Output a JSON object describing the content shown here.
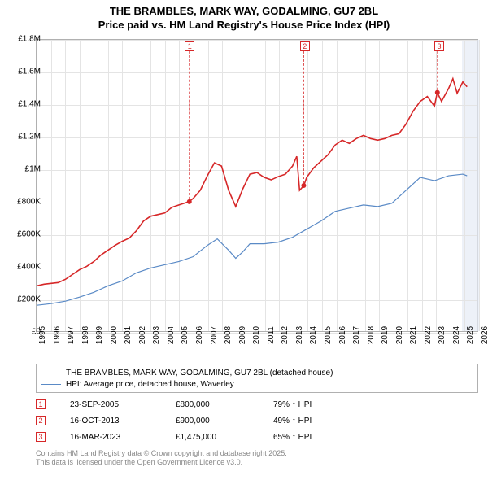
{
  "title_line1": "THE BRAMBLES, MARK WAY, GODALMING, GU7 2BL",
  "title_line2": "Price paid vs. HM Land Registry's House Price Index (HPI)",
  "chart": {
    "type": "line",
    "x_min": 1995,
    "x_max": 2026,
    "y_min": 0,
    "y_max": 1800000,
    "y_ticks": [
      0,
      200000,
      400000,
      600000,
      800000,
      1000000,
      1200000,
      1400000,
      1600000,
      1800000
    ],
    "y_tick_labels": [
      "£0",
      "£200K",
      "£400K",
      "£600K",
      "£800K",
      "£1M",
      "£1.2M",
      "£1.4M",
      "£1.6M",
      "£1.8M"
    ],
    "x_ticks": [
      1995,
      1996,
      1997,
      1998,
      1999,
      2000,
      2001,
      2002,
      2003,
      2004,
      2005,
      2006,
      2007,
      2008,
      2009,
      2010,
      2011,
      2012,
      2013,
      2014,
      2015,
      2016,
      2017,
      2018,
      2019,
      2020,
      2021,
      2022,
      2023,
      2024,
      2025,
      2026
    ],
    "background_color": "#ffffff",
    "grid_color": "#e4e4e4",
    "border_color": "#b0b0b0",
    "shaded_from": 2024.8,
    "shaded_to": 2026,
    "shade_color": "#e5ebf5",
    "series": [
      {
        "name": "THE BRAMBLES, MARK WAY, GODALMING, GU7 2BL (detached house)",
        "color": "#d62728",
        "width": 1.6,
        "data": [
          [
            1995.0,
            280000
          ],
          [
            1995.5,
            290000
          ],
          [
            1996.0,
            295000
          ],
          [
            1996.5,
            300000
          ],
          [
            1997.0,
            320000
          ],
          [
            1997.5,
            350000
          ],
          [
            1998.0,
            380000
          ],
          [
            1998.5,
            400000
          ],
          [
            1999.0,
            430000
          ],
          [
            1999.5,
            470000
          ],
          [
            2000.0,
            500000
          ],
          [
            2000.5,
            530000
          ],
          [
            2001.0,
            555000
          ],
          [
            2001.5,
            575000
          ],
          [
            2002.0,
            620000
          ],
          [
            2002.5,
            680000
          ],
          [
            2003.0,
            710000
          ],
          [
            2003.5,
            720000
          ],
          [
            2004.0,
            730000
          ],
          [
            2004.5,
            765000
          ],
          [
            2005.0,
            780000
          ],
          [
            2005.7,
            800000
          ],
          [
            2006.0,
            820000
          ],
          [
            2006.5,
            870000
          ],
          [
            2007.0,
            960000
          ],
          [
            2007.5,
            1040000
          ],
          [
            2008.0,
            1020000
          ],
          [
            2008.5,
            870000
          ],
          [
            2009.0,
            770000
          ],
          [
            2009.5,
            880000
          ],
          [
            2010.0,
            970000
          ],
          [
            2010.5,
            980000
          ],
          [
            2011.0,
            950000
          ],
          [
            2011.5,
            935000
          ],
          [
            2012.0,
            955000
          ],
          [
            2012.5,
            970000
          ],
          [
            2013.0,
            1020000
          ],
          [
            2013.3,
            1080000
          ],
          [
            2013.5,
            870000
          ],
          [
            2013.8,
            900000
          ],
          [
            2014.0,
            950000
          ],
          [
            2014.5,
            1010000
          ],
          [
            2015.0,
            1050000
          ],
          [
            2015.5,
            1090000
          ],
          [
            2016.0,
            1150000
          ],
          [
            2016.5,
            1180000
          ],
          [
            2017.0,
            1160000
          ],
          [
            2017.5,
            1190000
          ],
          [
            2018.0,
            1210000
          ],
          [
            2018.5,
            1190000
          ],
          [
            2019.0,
            1180000
          ],
          [
            2019.5,
            1190000
          ],
          [
            2020.0,
            1210000
          ],
          [
            2020.5,
            1220000
          ],
          [
            2021.0,
            1280000
          ],
          [
            2021.5,
            1360000
          ],
          [
            2022.0,
            1420000
          ],
          [
            2022.5,
            1450000
          ],
          [
            2023.0,
            1390000
          ],
          [
            2023.2,
            1475000
          ],
          [
            2023.5,
            1420000
          ],
          [
            2024.0,
            1500000
          ],
          [
            2024.3,
            1560000
          ],
          [
            2024.6,
            1470000
          ],
          [
            2025.0,
            1540000
          ],
          [
            2025.3,
            1510000
          ]
        ]
      },
      {
        "name": "HPI: Average price, detached house, Waverley",
        "color": "#5a8ac6",
        "width": 1.2,
        "data": [
          [
            1995.0,
            160000
          ],
          [
            1996.0,
            170000
          ],
          [
            1997.0,
            185000
          ],
          [
            1998.0,
            210000
          ],
          [
            1999.0,
            240000
          ],
          [
            2000.0,
            280000
          ],
          [
            2001.0,
            310000
          ],
          [
            2002.0,
            360000
          ],
          [
            2003.0,
            390000
          ],
          [
            2004.0,
            410000
          ],
          [
            2005.0,
            430000
          ],
          [
            2006.0,
            460000
          ],
          [
            2007.0,
            530000
          ],
          [
            2007.7,
            570000
          ],
          [
            2008.5,
            500000
          ],
          [
            2009.0,
            450000
          ],
          [
            2009.5,
            490000
          ],
          [
            2010.0,
            540000
          ],
          [
            2011.0,
            540000
          ],
          [
            2012.0,
            550000
          ],
          [
            2013.0,
            580000
          ],
          [
            2014.0,
            630000
          ],
          [
            2015.0,
            680000
          ],
          [
            2016.0,
            740000
          ],
          [
            2017.0,
            760000
          ],
          [
            2018.0,
            780000
          ],
          [
            2019.0,
            770000
          ],
          [
            2020.0,
            790000
          ],
          [
            2021.0,
            870000
          ],
          [
            2022.0,
            950000
          ],
          [
            2023.0,
            930000
          ],
          [
            2024.0,
            960000
          ],
          [
            2025.0,
            970000
          ],
          [
            2025.3,
            960000
          ]
        ]
      }
    ],
    "event_markers": [
      {
        "n": "1",
        "x": 2005.73,
        "point_y": 800000
      },
      {
        "n": "2",
        "x": 2013.79,
        "point_y": 900000
      },
      {
        "n": "3",
        "x": 2023.21,
        "point_y": 1475000
      }
    ]
  },
  "events": [
    {
      "n": "1",
      "date": "23-SEP-2005",
      "price": "£800,000",
      "hpi": "79% ↑ HPI"
    },
    {
      "n": "2",
      "date": "16-OCT-2013",
      "price": "£900,000",
      "hpi": "49% ↑ HPI"
    },
    {
      "n": "3",
      "date": "16-MAR-2023",
      "price": "£1,475,000",
      "hpi": "65% ↑ HPI"
    }
  ],
  "footer_line1": "Contains HM Land Registry data © Crown copyright and database right 2025.",
  "footer_line2": "This data is licensed under the Open Government Licence v3.0."
}
